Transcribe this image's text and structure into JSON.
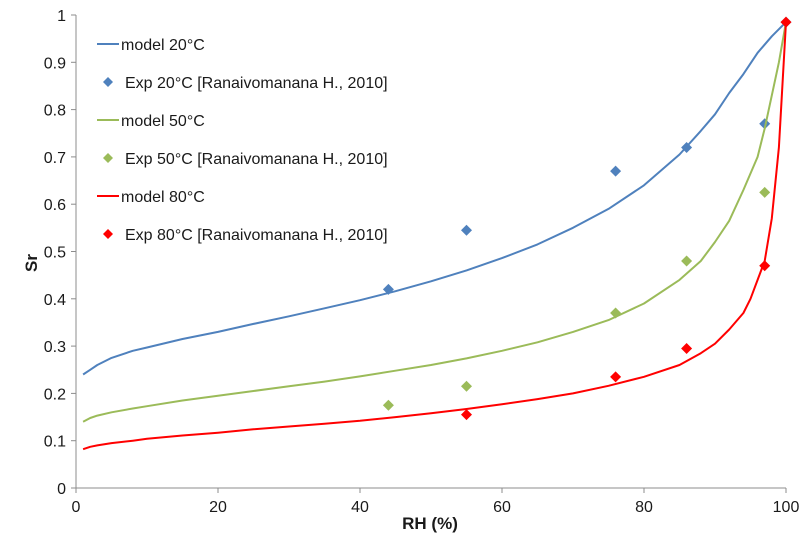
{
  "chart_data": {
    "type": "line",
    "title": "",
    "xlabel": "RH (%)",
    "ylabel": "Sr",
    "xlim": [
      0,
      100
    ],
    "ylim": [
      0,
      1
    ],
    "x_ticks": [
      "0",
      "20",
      "40",
      "60",
      "80",
      "100"
    ],
    "y_ticks": [
      "0",
      "0.1",
      "0.2",
      "0.3",
      "0.4",
      "0.5",
      "0.6",
      "0.7",
      "0.8",
      "0.9",
      "1"
    ],
    "grid": false,
    "legend_position": "top-left",
    "series": [
      {
        "name": "model 20°C",
        "kind": "line",
        "color": "#4F81BD",
        "x": [
          1,
          2,
          3,
          5,
          8,
          10,
          15,
          20,
          25,
          30,
          35,
          40,
          45,
          50,
          55,
          60,
          65,
          70,
          75,
          80,
          85,
          88,
          90,
          92,
          94,
          96,
          98,
          100
        ],
        "y": [
          0.24,
          0.25,
          0.26,
          0.275,
          0.29,
          0.297,
          0.315,
          0.33,
          0.347,
          0.363,
          0.38,
          0.397,
          0.416,
          0.437,
          0.46,
          0.486,
          0.515,
          0.55,
          0.59,
          0.64,
          0.705,
          0.755,
          0.79,
          0.835,
          0.875,
          0.92,
          0.955,
          0.985
        ]
      },
      {
        "name": "Exp 20°C [Ranaivomanana H., 2010]",
        "kind": "scatter",
        "color": "#4F81BD",
        "x": [
          44,
          55,
          76,
          86,
          97,
          100
        ],
        "y": [
          0.42,
          0.545,
          0.67,
          0.72,
          0.77,
          0.985
        ]
      },
      {
        "name": "model 50°C",
        "kind": "line",
        "color": "#9BBB59",
        "x": [
          1,
          2,
          3,
          5,
          8,
          10,
          15,
          20,
          25,
          30,
          35,
          40,
          45,
          50,
          55,
          60,
          65,
          70,
          75,
          80,
          85,
          88,
          90,
          92,
          94,
          96,
          97,
          98,
          99,
          100
        ],
        "y": [
          0.14,
          0.148,
          0.153,
          0.16,
          0.168,
          0.173,
          0.185,
          0.195,
          0.205,
          0.215,
          0.225,
          0.236,
          0.248,
          0.26,
          0.274,
          0.29,
          0.308,
          0.33,
          0.355,
          0.39,
          0.44,
          0.48,
          0.52,
          0.565,
          0.63,
          0.7,
          0.76,
          0.83,
          0.9,
          0.985
        ]
      },
      {
        "name": "Exp 50°C [Ranaivomanana H., 2010]",
        "kind": "scatter",
        "color": "#9BBB59",
        "x": [
          44,
          55,
          76,
          86,
          97
        ],
        "y": [
          0.175,
          0.215,
          0.37,
          0.48,
          0.625
        ]
      },
      {
        "name": "model 80°C",
        "kind": "line",
        "color": "#FF0000",
        "x": [
          1,
          2,
          3,
          5,
          8,
          10,
          15,
          20,
          25,
          30,
          35,
          40,
          45,
          50,
          55,
          60,
          65,
          70,
          75,
          80,
          85,
          88,
          90,
          92,
          94,
          95,
          96,
          97,
          98,
          99,
          100
        ],
        "y": [
          0.082,
          0.087,
          0.09,
          0.095,
          0.1,
          0.104,
          0.111,
          0.117,
          0.124,
          0.13,
          0.136,
          0.142,
          0.15,
          0.158,
          0.167,
          0.177,
          0.188,
          0.2,
          0.216,
          0.235,
          0.26,
          0.285,
          0.305,
          0.335,
          0.37,
          0.4,
          0.44,
          0.48,
          0.57,
          0.72,
          0.985
        ]
      },
      {
        "name": "Exp 80°C [Ranaivomanana H., 2010]",
        "kind": "scatter",
        "color": "#FF0000",
        "x": [
          55,
          76,
          86,
          97,
          100
        ],
        "y": [
          0.155,
          0.235,
          0.295,
          0.47,
          0.985
        ]
      }
    ]
  }
}
